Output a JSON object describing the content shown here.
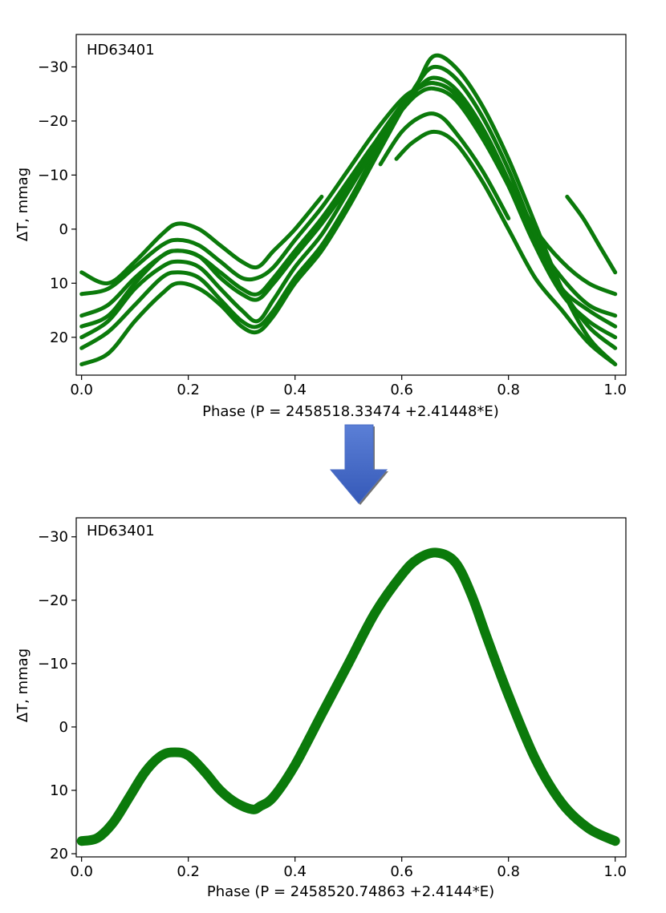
{
  "colors": {
    "series": "#0b7a0b",
    "arrow_fill_top": "#5b7fd6",
    "arrow_fill_bottom": "#3559b8",
    "arrow_edge": "#5a5a5a"
  },
  "arrow": {
    "icon": "down-arrow-icon",
    "direction": "down"
  },
  "chart_data": [
    {
      "type": "scatter",
      "title": "HD63401",
      "xlabel": "Phase (P = 2458518.33474 +2.41448*E)",
      "ylabel": "ΔT, mmag",
      "xlim": [
        -0.01,
        1.02
      ],
      "ylim": [
        27,
        -36
      ],
      "y_inverted": true,
      "grid": false,
      "legend": "none",
      "xticks": [
        0.0,
        0.2,
        0.4,
        0.6,
        0.8,
        1.0
      ],
      "xtick_labels": [
        "0.0",
        "0.2",
        "0.4",
        "0.6",
        "0.8",
        "1.0"
      ],
      "yticks": [
        -30,
        -20,
        -10,
        0,
        10,
        20
      ],
      "ytick_labels": [
        "−30",
        "−20",
        "−10",
        "0",
        "10",
        "20"
      ],
      "series": [
        {
          "x": [
            0.0,
            0.05,
            0.1,
            0.15,
            0.18,
            0.22,
            0.26,
            0.3,
            0.33,
            0.36,
            0.4,
            0.45
          ],
          "y": [
            8,
            10,
            6,
            1,
            -1,
            0,
            3,
            6,
            7,
            4,
            0,
            -6
          ]
        },
        {
          "x": [
            0.0,
            0.05,
            0.1,
            0.15,
            0.18,
            0.22,
            0.26,
            0.3,
            0.33,
            0.36,
            0.4,
            0.45,
            0.5,
            0.55,
            0.6,
            0.63,
            0.66,
            0.7,
            0.75,
            0.8,
            0.85,
            0.9,
            0.95,
            1.0
          ],
          "y": [
            12,
            11,
            7,
            3,
            2,
            3,
            6,
            9,
            9,
            7,
            2,
            -4,
            -11,
            -18,
            -24,
            -26,
            -27,
            -25,
            -18,
            -9,
            0,
            6,
            10,
            12
          ]
        },
        {
          "x": [
            0.0,
            0.05,
            0.1,
            0.15,
            0.18,
            0.22,
            0.26,
            0.3,
            0.33,
            0.36,
            0.4,
            0.45,
            0.5,
            0.55,
            0.6,
            0.63,
            0.66,
            0.7,
            0.75,
            0.8,
            0.85,
            0.9,
            0.95,
            1.0
          ],
          "y": [
            16,
            14,
            9,
            5,
            4,
            5,
            8,
            11,
            12,
            9,
            4,
            -2,
            -9,
            -16,
            -22,
            -25,
            -26,
            -24,
            -17,
            -8,
            2,
            9,
            14,
            16
          ]
        },
        {
          "x": [
            0.0,
            0.05,
            0.1,
            0.15,
            0.18,
            0.22,
            0.26,
            0.3,
            0.33,
            0.36,
            0.4,
            0.45,
            0.5,
            0.55,
            0.6,
            0.63,
            0.66,
            0.7,
            0.75,
            0.8,
            0.85,
            0.9,
            0.95,
            1.0
          ],
          "y": [
            18,
            16,
            10,
            5,
            4,
            5,
            9,
            12,
            13,
            10,
            5,
            -1,
            -8,
            -16,
            -23,
            -26,
            -27,
            -25,
            -18,
            -8,
            3,
            11,
            15,
            18
          ]
        },
        {
          "x": [
            0.0,
            0.05,
            0.1,
            0.15,
            0.18,
            0.22,
            0.26,
            0.3,
            0.33,
            0.36,
            0.4,
            0.45,
            0.5,
            0.55,
            0.6,
            0.63,
            0.66,
            0.7,
            0.75,
            0.8,
            0.85,
            0.9,
            0.95,
            1.0
          ],
          "y": [
            20,
            17,
            11,
            7,
            6,
            7,
            11,
            15,
            17,
            13,
            7,
            1,
            -7,
            -15,
            -22,
            -26,
            -28,
            -26,
            -19,
            -9,
            3,
            12,
            17,
            20
          ]
        },
        {
          "x": [
            0.0,
            0.05,
            0.1,
            0.15,
            0.18,
            0.22,
            0.26,
            0.3,
            0.33,
            0.36,
            0.4,
            0.45,
            0.5,
            0.55,
            0.6,
            0.63,
            0.66,
            0.7,
            0.75,
            0.8,
            0.85,
            0.9,
            0.95,
            1.0
          ],
          "y": [
            22,
            19,
            14,
            9,
            8,
            9,
            13,
            17,
            18,
            15,
            9,
            3,
            -5,
            -14,
            -22,
            -27,
            -30,
            -28,
            -21,
            -11,
            1,
            11,
            18,
            22
          ]
        },
        {
          "x": [
            0.0,
            0.05,
            0.1,
            0.15,
            0.18,
            0.22,
            0.26,
            0.3,
            0.33,
            0.36,
            0.4,
            0.45,
            0.5,
            0.55,
            0.6,
            0.63,
            0.66,
            0.7,
            0.75,
            0.8,
            0.85,
            0.9,
            0.95,
            1.0
          ],
          "y": [
            25,
            23,
            17,
            12,
            10,
            11,
            14,
            18,
            19,
            16,
            10,
            4,
            -4,
            -13,
            -22,
            -27,
            -32,
            -30,
            -23,
            -13,
            -1,
            11,
            20,
            25
          ]
        },
        {
          "x": [
            0.59,
            0.62,
            0.66,
            0.7,
            0.75,
            0.8,
            0.85,
            0.9,
            0.95,
            1.0
          ],
          "y": [
            -13,
            -16,
            -18,
            -16,
            -9,
            0,
            9,
            15,
            21,
            25
          ]
        },
        {
          "x": [
            0.56,
            0.6,
            0.64,
            0.67,
            0.7,
            0.75,
            0.8
          ],
          "y": [
            -12,
            -18,
            -21,
            -21,
            -18,
            -11,
            -2
          ]
        },
        {
          "x": [
            0.91,
            0.94,
            0.97,
            1.0
          ],
          "y": [
            -6,
            -2,
            3,
            8
          ]
        }
      ]
    },
    {
      "type": "scatter",
      "title": "HD63401",
      "xlabel": "Phase (P = 2458520.74863 +2.4144*E)",
      "ylabel": "ΔT, mmag",
      "xlim": [
        -0.01,
        1.02
      ],
      "ylim": [
        20.5,
        -33
      ],
      "y_inverted": true,
      "grid": false,
      "legend": "none",
      "xticks": [
        0.0,
        0.2,
        0.4,
        0.6,
        0.8,
        1.0
      ],
      "xtick_labels": [
        "0.0",
        "0.2",
        "0.4",
        "0.6",
        "0.8",
        "1.0"
      ],
      "yticks": [
        -30,
        -20,
        -10,
        0,
        10,
        20
      ],
      "ytick_labels": [
        "−30",
        "−20",
        "−10",
        "0",
        "10",
        "20"
      ],
      "series": [
        {
          "x": [
            0.0,
            0.03,
            0.06,
            0.09,
            0.12,
            0.15,
            0.175,
            0.2,
            0.23,
            0.26,
            0.29,
            0.32,
            0.335,
            0.36,
            0.4,
            0.45,
            0.5,
            0.55,
            0.6,
            0.63,
            0.665,
            0.7,
            0.73,
            0.76,
            0.8,
            0.85,
            0.9,
            0.95,
            1.0
          ],
          "y": [
            18,
            17.5,
            15,
            11,
            7,
            4.5,
            4,
            4.5,
            7,
            10,
            12,
            13,
            12.5,
            11,
            6,
            -2,
            -10,
            -18,
            -24,
            -26.5,
            -27.5,
            -26,
            -21,
            -14,
            -5,
            5,
            12,
            16,
            18
          ]
        }
      ]
    }
  ]
}
